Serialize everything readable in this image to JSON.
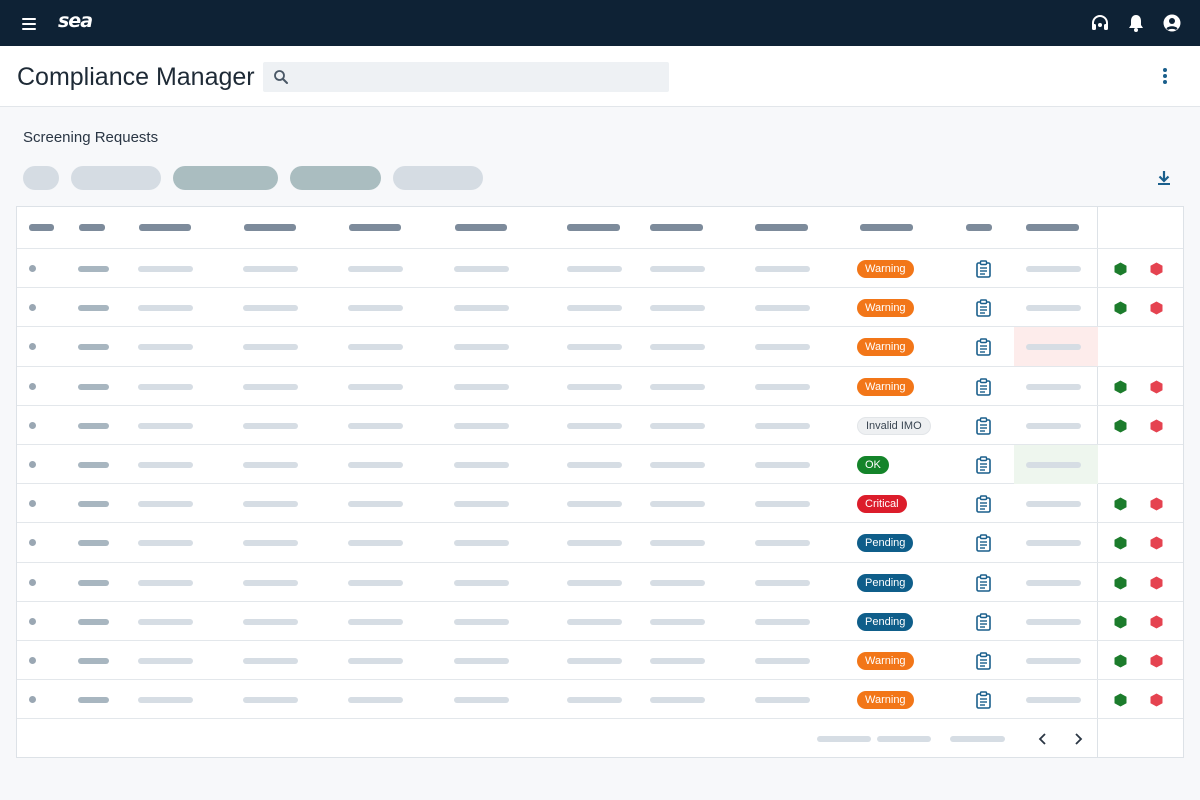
{
  "app": {
    "logo": "sea"
  },
  "header": {
    "title": "Compliance Manager",
    "search_placeholder": ""
  },
  "section": {
    "title": "Screening Requests"
  },
  "colors": {
    "topbar": "#0e2235",
    "warning": "#f27618",
    "ok": "#14842a",
    "critical": "#dc1d2b",
    "pending": "#0f5e8a",
    "icon_blue": "#1a5f8c",
    "hex_green": "#1c7c2c",
    "hex_red": "#e54350"
  },
  "icons": {
    "menu": "menu-icon",
    "support": "headset-icon",
    "notifications": "bell-icon",
    "account": "account-circle-icon",
    "search": "search-icon",
    "more": "more-vert-icon",
    "download": "download-icon",
    "report": "clipboard-icon",
    "approve": "green-hexagon-icon",
    "reject": "red-hexagon-icon",
    "prev": "chevron-left-icon",
    "next": "chevron-right-icon"
  },
  "rows": [
    {
      "status": "Warning",
      "type": "warning",
      "highlight": "",
      "actions": true
    },
    {
      "status": "Warning",
      "type": "warning",
      "highlight": "",
      "actions": true
    },
    {
      "status": "Warning",
      "type": "warning",
      "highlight": "red",
      "actions": false
    },
    {
      "status": "Warning",
      "type": "warning",
      "highlight": "",
      "actions": true
    },
    {
      "status": "Invalid IMO",
      "type": "invalid",
      "highlight": "",
      "actions": true
    },
    {
      "status": "OK",
      "type": "ok",
      "highlight": "green",
      "actions": false
    },
    {
      "status": "Critical",
      "type": "critical",
      "highlight": "",
      "actions": true
    },
    {
      "status": "Pending",
      "type": "pending",
      "highlight": "",
      "actions": true
    },
    {
      "status": "Pending",
      "type": "pending",
      "highlight": "",
      "actions": true
    },
    {
      "status": "Pending",
      "type": "pending",
      "highlight": "",
      "actions": true
    },
    {
      "status": "Warning",
      "type": "warning",
      "highlight": "",
      "actions": true
    },
    {
      "status": "Warning",
      "type": "warning",
      "highlight": "",
      "actions": true
    }
  ]
}
